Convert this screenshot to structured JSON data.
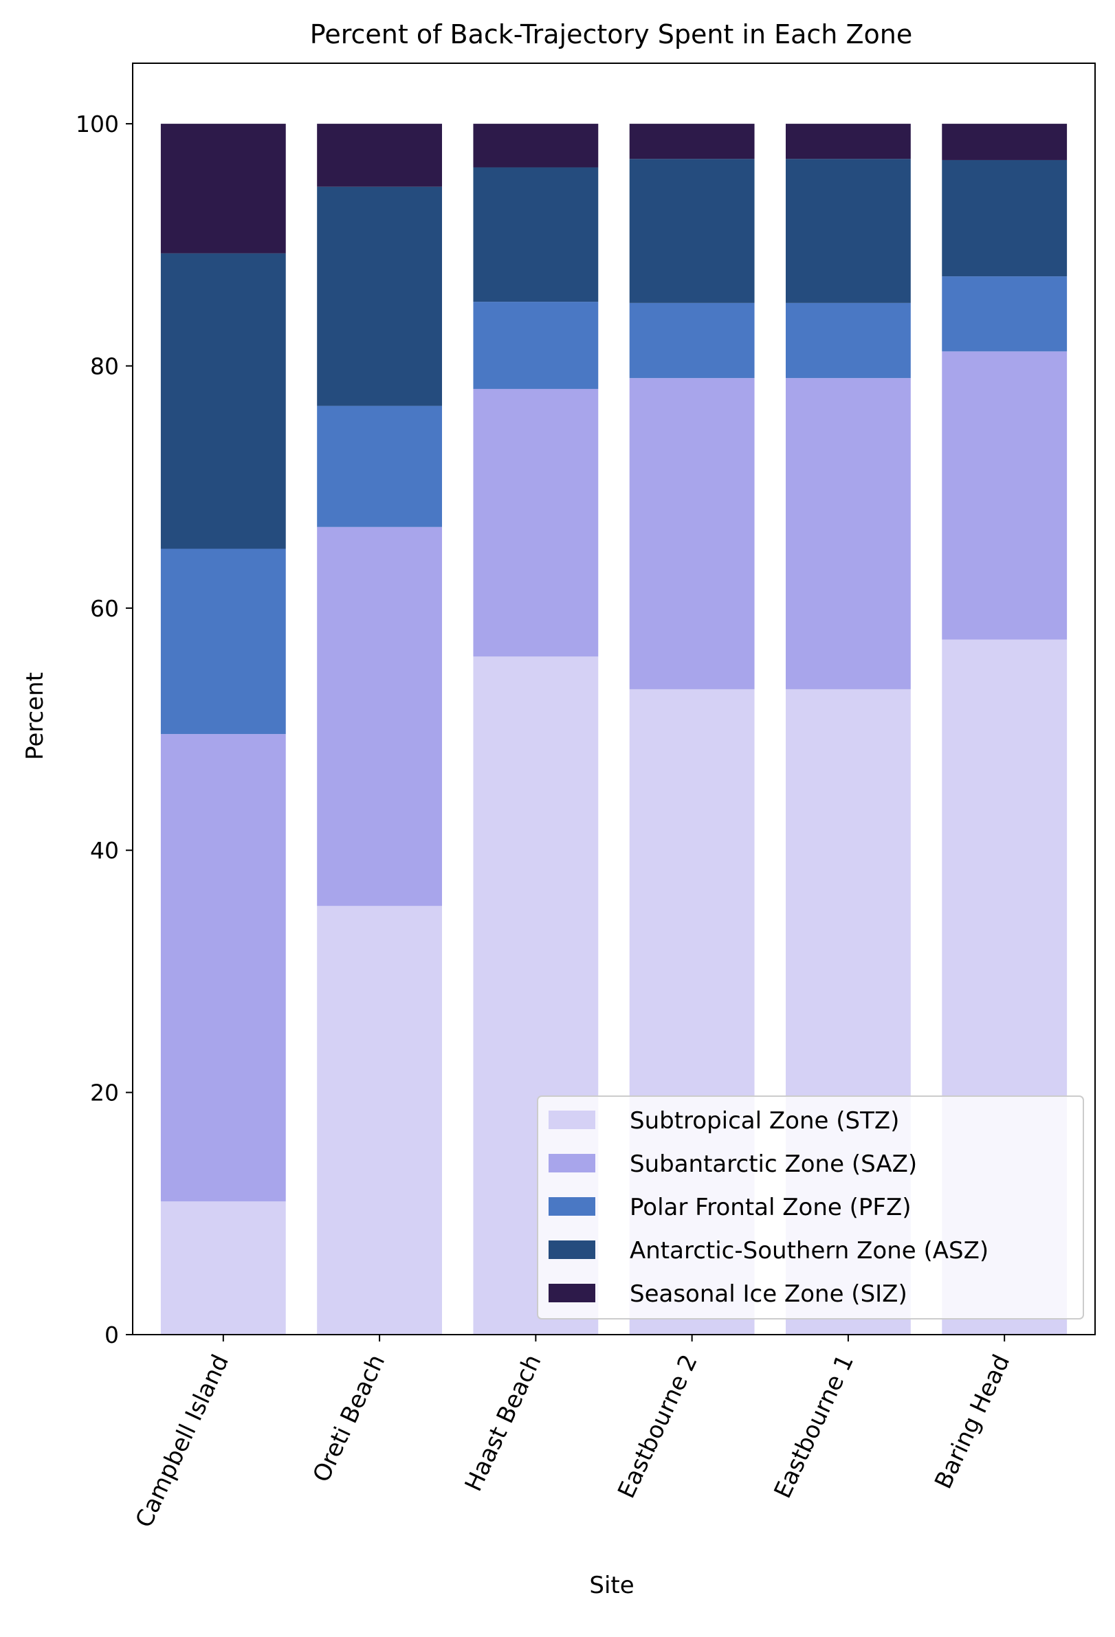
{
  "chart_data": {
    "type": "bar",
    "stacked": true,
    "title": "Percent of Back-Trajectory Spent in Each Zone",
    "xlabel": "Site",
    "ylabel": "Percent",
    "ylim": [
      0,
      105
    ],
    "yticks": [
      0,
      20,
      40,
      60,
      80,
      100
    ],
    "grid": false,
    "legend_position": "lower-right",
    "categories": [
      "Campbell Island",
      "Oreti Beach",
      "Haast Beach",
      "Eastbourne 2",
      "Eastbourne 1",
      "Baring Head"
    ],
    "series": [
      {
        "name": "Subtropical Zone (STZ)",
        "color": "#d5d1f5",
        "values": [
          11.0,
          35.4,
          56.0,
          53.3,
          53.3,
          57.4
        ]
      },
      {
        "name": "Subantarctic Zone (SAZ)",
        "color": "#a8a5eb",
        "values": [
          38.6,
          31.3,
          22.1,
          25.7,
          25.7,
          23.8
        ]
      },
      {
        "name": "Polar Frontal Zone (PFZ)",
        "color": "#4a78c4",
        "values": [
          15.3,
          10.0,
          7.2,
          6.2,
          6.2,
          6.2
        ]
      },
      {
        "name": "Antarctic-Southern Zone (ASZ)",
        "color": "#254c7e",
        "values": [
          24.4,
          18.1,
          11.1,
          11.9,
          11.9,
          9.6
        ]
      },
      {
        "name": "Seasonal Ice Zone (SIZ)",
        "color": "#2d1a4a",
        "values": [
          10.7,
          5.2,
          3.6,
          2.9,
          2.9,
          3.0
        ]
      }
    ]
  }
}
